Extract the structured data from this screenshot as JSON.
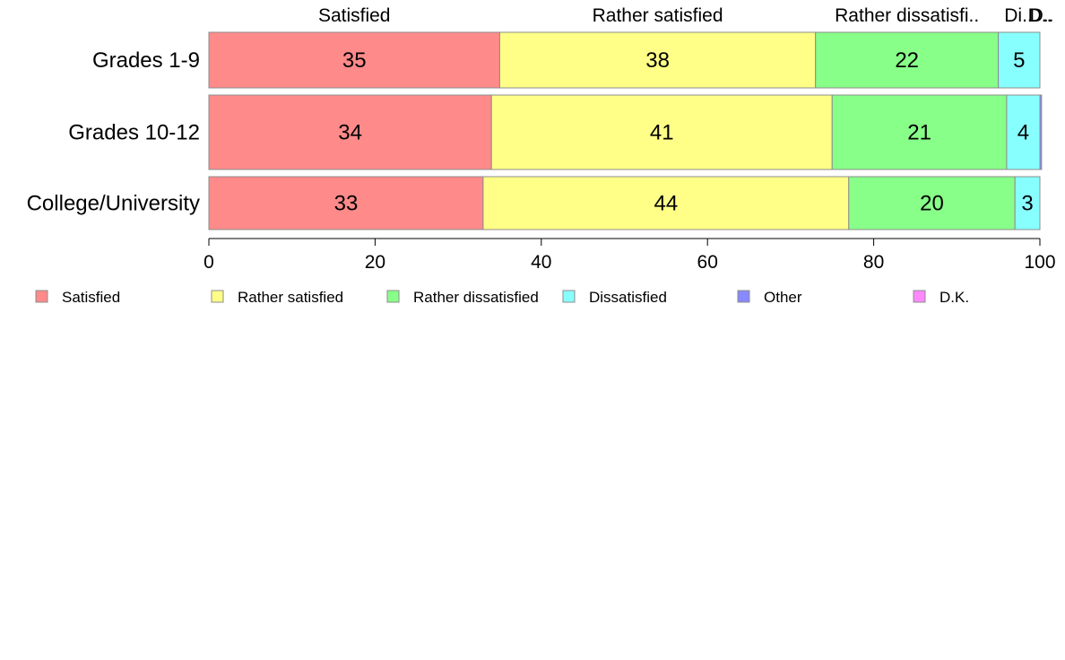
{
  "chart_data": {
    "type": "bar",
    "orientation": "horizontal",
    "stacked": true,
    "categories": [
      "Grades 1-9",
      "Grades 10-12",
      "College/University"
    ],
    "series": [
      {
        "name": "Satisfied",
        "color": "#ff8a8a",
        "values": [
          35,
          34,
          33
        ],
        "labels": [
          "35",
          "34",
          "33"
        ]
      },
      {
        "name": "Rather satisfied",
        "color": "#ffff88",
        "values": [
          38,
          41,
          44
        ],
        "labels": [
          "38",
          "41",
          "44"
        ]
      },
      {
        "name": "Rather dissatisfied",
        "color": "#88ff88",
        "values": [
          22,
          21,
          20
        ],
        "labels": [
          "22",
          "21",
          "20"
        ]
      },
      {
        "name": "Dissatisfied",
        "color": "#88ffff",
        "values": [
          5,
          4,
          3
        ],
        "labels": [
          "5",
          "4",
          "3"
        ]
      },
      {
        "name": "Other",
        "color": "#8888ff",
        "values": [
          0,
          0.2,
          0
        ],
        "labels": [
          "",
          "",
          ""
        ]
      },
      {
        "name": "D.K.",
        "color": "#ff88ff",
        "values": [
          0,
          0,
          0
        ],
        "labels": [
          "",
          "",
          ""
        ]
      }
    ],
    "top_labels": [
      "Satisfied",
      "Rather satisfied",
      "Rather dissatisfi..",
      "Di..",
      "D..",
      "D.."
    ],
    "x_ticks": [
      0,
      20,
      40,
      60,
      80,
      100
    ],
    "x_tick_labels": [
      "0",
      "20",
      "40",
      "60",
      "80",
      "100"
    ],
    "xlim": [
      0,
      100
    ],
    "grid": false,
    "legend_position": "bottom"
  }
}
